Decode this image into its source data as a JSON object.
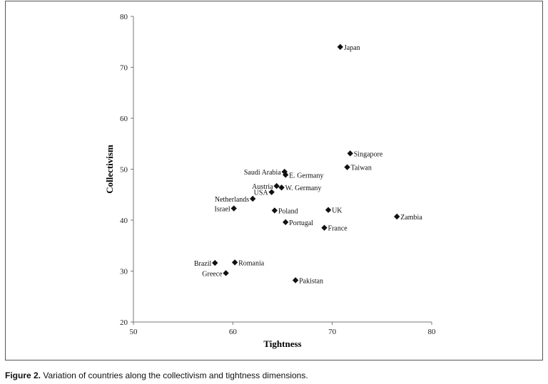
{
  "chart_data": {
    "type": "scatter",
    "title": "",
    "xlabel": "Tightness",
    "ylabel": "Collectivism",
    "xlim": [
      50,
      80
    ],
    "ylim": [
      20,
      80
    ],
    "xticks": [
      "50",
      "60",
      "70",
      "80"
    ],
    "yticks": [
      "20",
      "30",
      "40",
      "50",
      "60",
      "70",
      "80"
    ],
    "grid": false,
    "marker": "diamond",
    "marker_color": "#111111",
    "points": [
      {
        "label": "Japan",
        "x": 70.8,
        "y": 74.0,
        "label_side": "right"
      },
      {
        "label": "Singapore",
        "x": 71.8,
        "y": 53.1,
        "label_side": "right"
      },
      {
        "label": "Taiwan",
        "x": 71.5,
        "y": 50.4,
        "label_side": "right"
      },
      {
        "label": "Saudi Arabia",
        "x": 65.2,
        "y": 49.5,
        "label_side": "left"
      },
      {
        "label": "E. Germany",
        "x": 65.3,
        "y": 48.9,
        "label_side": "right"
      },
      {
        "label": "Austria",
        "x": 64.4,
        "y": 46.7,
        "label_side": "left"
      },
      {
        "label": "W. Germany",
        "x": 64.9,
        "y": 46.4,
        "label_side": "right"
      },
      {
        "label": "USA",
        "x": 63.9,
        "y": 45.5,
        "label_side": "left"
      },
      {
        "label": "Netherlands",
        "x": 62.0,
        "y": 44.2,
        "label_side": "left"
      },
      {
        "label": "Israel",
        "x": 60.1,
        "y": 42.3,
        "label_side": "left"
      },
      {
        "label": "Poland",
        "x": 64.2,
        "y": 41.9,
        "label_side": "right"
      },
      {
        "label": "UK",
        "x": 69.6,
        "y": 42.0,
        "label_side": "right"
      },
      {
        "label": "Zambia",
        "x": 76.5,
        "y": 40.7,
        "label_side": "right"
      },
      {
        "label": "Portugal",
        "x": 65.3,
        "y": 39.6,
        "label_side": "right"
      },
      {
        "label": "France",
        "x": 69.2,
        "y": 38.5,
        "label_side": "right"
      },
      {
        "label": "Brazil",
        "x": 58.2,
        "y": 31.6,
        "label_side": "left"
      },
      {
        "label": "Romania",
        "x": 60.2,
        "y": 31.7,
        "label_side": "right"
      },
      {
        "label": "Greece",
        "x": 59.3,
        "y": 29.6,
        "label_side": "left"
      },
      {
        "label": "Pakistan",
        "x": 66.3,
        "y": 28.2,
        "label_side": "right"
      }
    ]
  },
  "caption": {
    "label": "Figure 2.",
    "text": "Variation of countries along the collectivism and tightness dimensions."
  }
}
